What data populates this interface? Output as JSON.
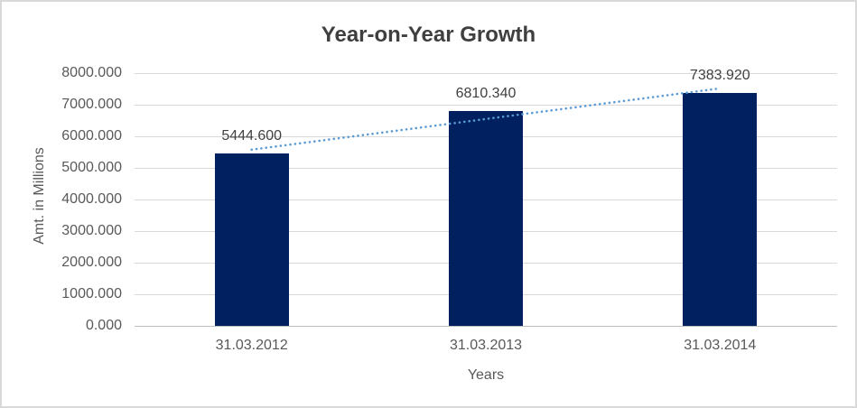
{
  "chart_data": {
    "type": "bar",
    "title": "Year-on-Year Growth",
    "categories": [
      "31.03.2012",
      "31.03.2013",
      "31.03.2014"
    ],
    "values": [
      5444.6,
      6810.34,
      7383.92
    ],
    "data_labels": [
      "5444.600",
      "6810.340",
      "7383.920"
    ],
    "xlabel": "Years",
    "ylabel": "Amt. in Millions",
    "ylim": [
      0,
      8000
    ],
    "ytick_interval": 1000,
    "ytick_labels": [
      "8000.000",
      "7000.000",
      "6000.000",
      "5000.000",
      "4000.000",
      "3000.000",
      "2000.000",
      "1000.000",
      "0.000"
    ],
    "grid": true,
    "legend": "none",
    "trendline": {
      "type": "linear",
      "style": "dotted",
      "spans": "first-to-last-category"
    },
    "colors": {
      "bar": "#002060",
      "trendline": "#5B9BD5",
      "gridline": "#D9D9D9",
      "axis_line": "#BFBFBF",
      "title_text": "#3F3F3F",
      "data_label_text": "#404040",
      "tick_text": "#595959",
      "border": "#D9D9D9",
      "background": "#FFFFFF"
    }
  }
}
